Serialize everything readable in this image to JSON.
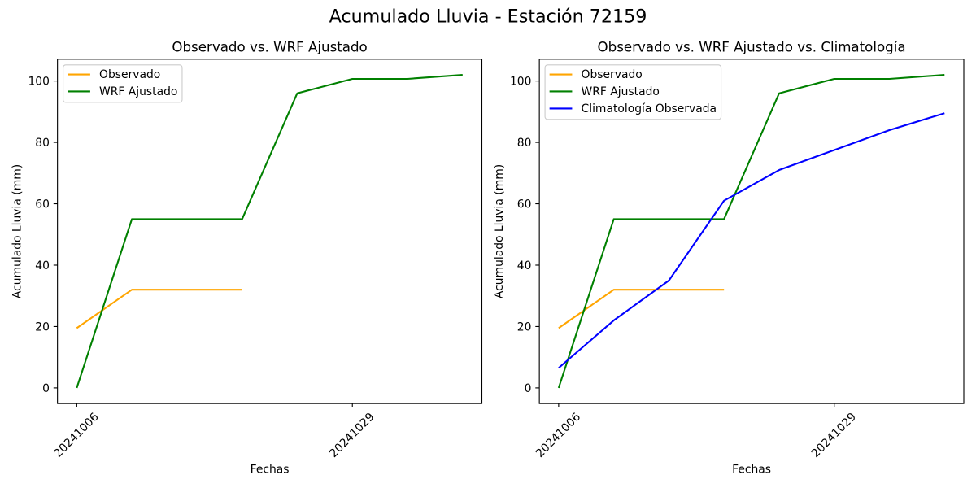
{
  "figure": {
    "suptitle": "Acumulado Lluvia - Estación 72159",
    "background": "#ffffff",
    "text_color": "#000000"
  },
  "chart_data": [
    {
      "type": "line",
      "title": "Observado vs. WRF Ajustado",
      "xlabel": "Fechas",
      "ylabel": "Acumulado Lluvia (mm)",
      "n_points": 8,
      "x": [
        0,
        1,
        2,
        3,
        4,
        5,
        6,
        7
      ],
      "x_tick_positions": [
        0,
        5
      ],
      "x_tick_labels": [
        "20241006",
        "20241029"
      ],
      "x_tick_rotation": 45,
      "y_ticks": [
        0,
        20,
        40,
        60,
        80,
        100
      ],
      "xlim": [
        -0.35,
        7.35
      ],
      "ylim": [
        -5.1,
        107.1
      ],
      "grid": false,
      "legend_position": "upper left",
      "series": [
        {
          "name": "Observado",
          "color": "#FFA500",
          "values": [
            19.5,
            32,
            32,
            32,
            null,
            null,
            null,
            null
          ]
        },
        {
          "name": "WRF Ajustado",
          "color": "#008000",
          "values": [
            0,
            55,
            55,
            55,
            96,
            100.7,
            100.7,
            102
          ]
        }
      ]
    },
    {
      "type": "line",
      "title": "Observado vs. WRF Ajustado vs. Climatología",
      "xlabel": "Fechas",
      "ylabel": "Acumulado Lluvia (mm)",
      "n_points": 8,
      "x": [
        0,
        1,
        2,
        3,
        4,
        5,
        6,
        7
      ],
      "x_tick_positions": [
        0,
        5
      ],
      "x_tick_labels": [
        "20241006",
        "20241029"
      ],
      "x_tick_rotation": 45,
      "y_ticks": [
        0,
        20,
        40,
        60,
        80,
        100
      ],
      "xlim": [
        -0.35,
        7.35
      ],
      "ylim": [
        -5.1,
        107.1
      ],
      "grid": false,
      "legend_position": "upper left",
      "series": [
        {
          "name": "Observado",
          "color": "#FFA500",
          "values": [
            19.5,
            32,
            32,
            32,
            null,
            null,
            null,
            null
          ]
        },
        {
          "name": "WRF Ajustado",
          "color": "#008000",
          "values": [
            0,
            55,
            55,
            55,
            96,
            100.7,
            100.7,
            102
          ]
        },
        {
          "name": "Climatología Observada",
          "color": "#0000FF",
          "values": [
            6.5,
            22,
            35,
            61,
            71,
            77.5,
            84,
            89.5
          ]
        }
      ]
    }
  ]
}
